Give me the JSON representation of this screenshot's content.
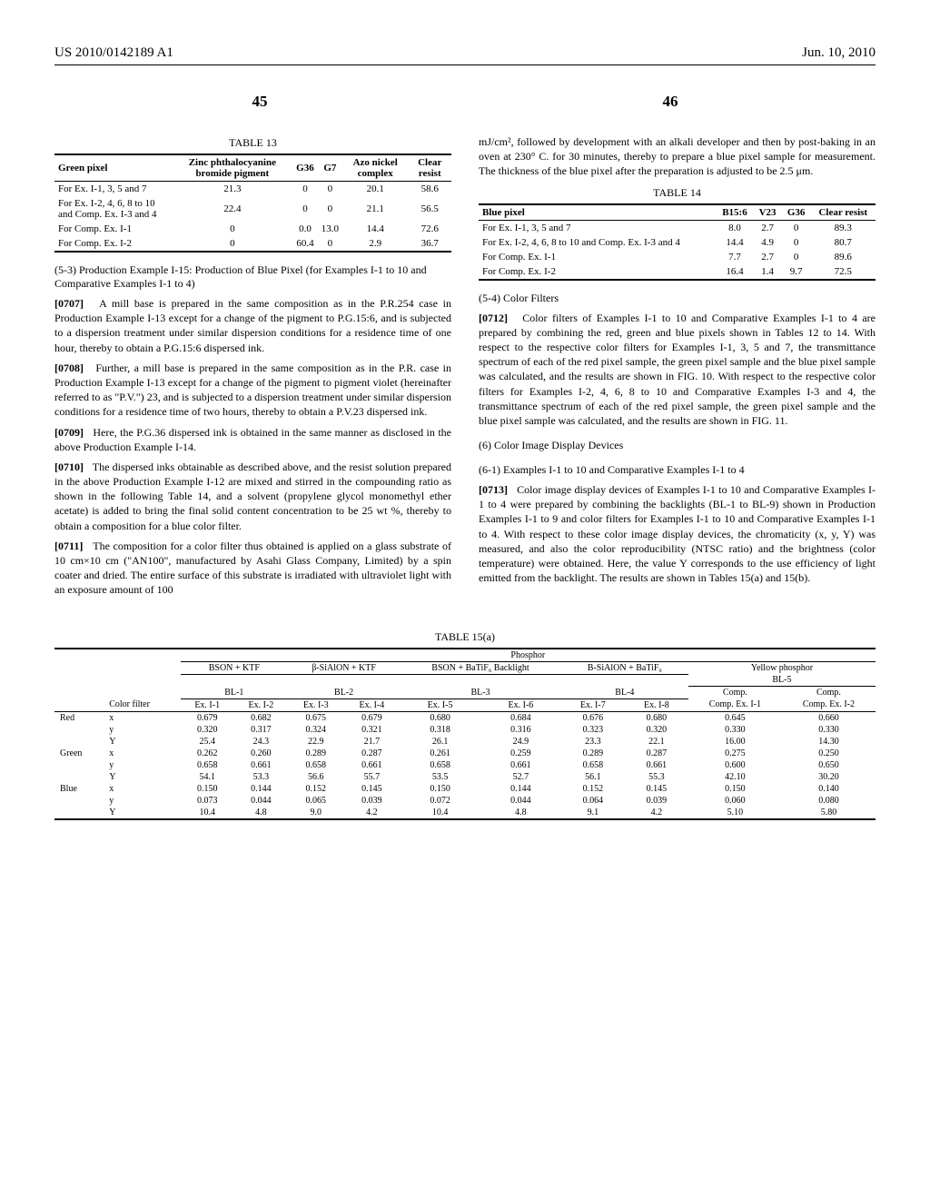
{
  "header": {
    "pub_number": "US 2010/0142189 A1",
    "pub_date": "Jun. 10, 2010",
    "page_left": "45",
    "page_right": "46"
  },
  "table13": {
    "caption": "TABLE 13",
    "columns": [
      "Green pixel",
      "Zinc phthalocyanine bromide pigment",
      "G36",
      "G7",
      "Azo nickel complex",
      "Clear resist"
    ],
    "rows": [
      [
        "For Ex. I-1, 3, 5 and 7",
        "21.3",
        "0",
        "0",
        "20.1",
        "58.6"
      ],
      [
        "For Ex. I-2, 4, 6, 8 to 10 and Comp. Ex. I-3 and 4",
        "22.4",
        "0",
        "0",
        "21.1",
        "56.5"
      ],
      [
        "For Comp. Ex. I-1",
        "0",
        "0.0",
        "13.0",
        "14.4",
        "72.6"
      ],
      [
        "For Comp. Ex. I-2",
        "0",
        "60.4",
        "0",
        "2.9",
        "36.7"
      ]
    ]
  },
  "section53_title": "(5-3) Production Example I-15: Production of Blue Pixel (for Examples I-1 to 10 and Comparative Examples I-1 to 4)",
  "para0707": "A mill base is prepared in the same composition as in the P.R.254 case in Production Example I-13 except for a change of the pigment to P.G.15:6, and is subjected to a dispersion treatment under similar dispersion conditions for a residence time of one hour, thereby to obtain a P.G.15:6 dispersed ink.",
  "para0708": "Further, a mill base is prepared in the same composition as in the P.R. case in Production Example I-13 except for a change of the pigment to pigment violet (hereinafter referred to as \"P.V.\") 23, and is subjected to a dispersion treatment under similar dispersion conditions for a residence time of two hours, thereby to obtain a P.V.23 dispersed ink.",
  "para0709": "Here, the P.G.36 dispersed ink is obtained in the same manner as disclosed in the above Production Example I-14.",
  "para0710": "The dispersed inks obtainable as described above, and the resist solution prepared in the above Production Example I-12 are mixed and stirred in the compounding ratio as shown in the following Table 14, and a solvent (propylene glycol monomethyl ether acetate) is added to bring the final solid content concentration to be 25 wt %, thereby to obtain a composition for a blue color filter.",
  "para0711": "The composition for a color filter thus obtained is applied on a glass substrate of 10 cm×10 cm (\"AN100\", manufactured by Asahi Glass Company, Limited) by a spin coater and dried. The entire surface of this substrate is irradiated with ultraviolet light with an exposure amount of 100",
  "right_top_text": "mJ/cm², followed by development with an alkali developer and then by post-baking in an oven at 230° C. for 30 minutes, thereby to prepare a blue pixel sample for measurement. The thickness of the blue pixel after the preparation is adjusted to be 2.5 μm.",
  "table14": {
    "caption": "TABLE 14",
    "columns": [
      "Blue pixel",
      "B15:6",
      "V23",
      "G36",
      "Clear resist"
    ],
    "rows": [
      [
        "For Ex. I-1, 3, 5 and 7",
        "8.0",
        "2.7",
        "0",
        "89.3"
      ],
      [
        "For Ex. I-2, 4, 6, 8 to 10 and Comp. Ex. I-3 and 4",
        "14.4",
        "4.9",
        "0",
        "80.7"
      ],
      [
        "For Comp. Ex. I-1",
        "7.7",
        "2.7",
        "0",
        "89.6"
      ],
      [
        "For Comp. Ex. I-2",
        "16.4",
        "1.4",
        "9.7",
        "72.5"
      ]
    ]
  },
  "section54_title": "(5-4) Color Filters",
  "para0712": "Color filters of Examples I-1 to 10 and Comparative Examples I-1 to 4 are prepared by combining the red, green and blue pixels shown in Tables 12 to 14. With respect to the respective color filters for Examples I-1, 3, 5 and 7, the transmittance spectrum of each of the red pixel sample, the green pixel sample and the blue pixel sample was calculated, and the results are shown in FIG. 10. With respect to the respective color filters for Examples I-2, 4, 6, 8 to 10 and Comparative Examples I-3 and 4, the transmittance spectrum of each of the red pixel sample, the green pixel sample and the blue pixel sample was calculated, and the results are shown in FIG. 11.",
  "section6_title": "(6) Color Image Display Devices",
  "section61_title": "(6-1) Examples I-1 to 10 and Comparative Examples I-1 to 4",
  "para0713": "Color image display devices of Examples I-1 to 10 and Comparative Examples I-1 to 4 were prepared by combining the backlights (BL-1 to BL-9) shown in Production Examples I-1 to 9 and color filters for Examples I-1 to 10 and Comparative Examples I-1 to 4. With respect to these color image display devices, the chromaticity (x, y, Y) was measured, and also the color reproducibility (NTSC ratio) and the brightness (color temperature) were obtained. Here, the value Y corresponds to the use efficiency of light emitted from the backlight. The results are shown in Tables 15(a) and 15(b).",
  "table15": {
    "caption": "TABLE 15(a)",
    "phosphor_header": "Phosphor",
    "groups": [
      "BSON + KTF",
      "β-SiAlON + KTF",
      "BSON + BaTiF₆ Backlight",
      "B-SiAlON + BaTiF₆",
      "Yellow phosphor"
    ],
    "bl_labels": [
      "BL-1",
      "BL-2",
      "BL-3",
      "BL-4",
      "BL-5"
    ],
    "filter_header_left": "Color filter",
    "filter_cols": [
      "Ex. I-1",
      "Ex. I-2",
      "Ex. I-3",
      "Ex. I-4",
      "Ex. I-5",
      "Ex. I-6",
      "Ex. I-7",
      "Ex. I-8",
      "Comp. Ex. I-1",
      "Comp. Ex. I-2"
    ],
    "short_filter_cols": [
      "Ex. I-1",
      "Ex. I-2",
      "Ex. I-3",
      "Ex. I-4",
      "Ex. I-5",
      "Ex. I-6",
      "Ex. I-7",
      "Ex. I-8",
      "Comp.",
      "Comp."
    ],
    "short_filter_cols2": [
      "",
      "",
      "",
      "",
      "",
      "",
      "",
      "",
      "Ex. I-1",
      "Ex. I-2"
    ],
    "rows": [
      {
        "color": "Red",
        "metric": "x",
        "vals": [
          "0.679",
          "0.682",
          "0.675",
          "0.679",
          "0.680",
          "0.684",
          "0.676",
          "0.680",
          "0.645",
          "0.660"
        ]
      },
      {
        "color": "",
        "metric": "y",
        "vals": [
          "0.320",
          "0.317",
          "0.324",
          "0.321",
          "0.318",
          "0.316",
          "0.323",
          "0.320",
          "0.330",
          "0.330"
        ]
      },
      {
        "color": "",
        "metric": "Y",
        "vals": [
          "25.4",
          "24.3",
          "22.9",
          "21.7",
          "26.1",
          "24.9",
          "23.3",
          "22.1",
          "16.00",
          "14.30"
        ]
      },
      {
        "color": "Green",
        "metric": "x",
        "vals": [
          "0.262",
          "0.260",
          "0.289",
          "0.287",
          "0.261",
          "0.259",
          "0.289",
          "0.287",
          "0.275",
          "0.250"
        ]
      },
      {
        "color": "",
        "metric": "y",
        "vals": [
          "0.658",
          "0.661",
          "0.658",
          "0.661",
          "0.658",
          "0.661",
          "0.658",
          "0.661",
          "0.600",
          "0.650"
        ]
      },
      {
        "color": "",
        "metric": "Y",
        "vals": [
          "54.1",
          "53.3",
          "56.6",
          "55.7",
          "53.5",
          "52.7",
          "56.1",
          "55.3",
          "42.10",
          "30.20"
        ]
      },
      {
        "color": "Blue",
        "metric": "x",
        "vals": [
          "0.150",
          "0.144",
          "0.152",
          "0.145",
          "0.150",
          "0.144",
          "0.152",
          "0.145",
          "0.150",
          "0.140"
        ]
      },
      {
        "color": "",
        "metric": "y",
        "vals": [
          "0.073",
          "0.044",
          "0.065",
          "0.039",
          "0.072",
          "0.044",
          "0.064",
          "0.039",
          "0.060",
          "0.080"
        ]
      },
      {
        "color": "",
        "metric": "Y",
        "vals": [
          "10.4",
          "4.8",
          "9.0",
          "4.2",
          "10.4",
          "4.8",
          "9.1",
          "4.2",
          "5.10",
          "5.80"
        ]
      }
    ]
  }
}
